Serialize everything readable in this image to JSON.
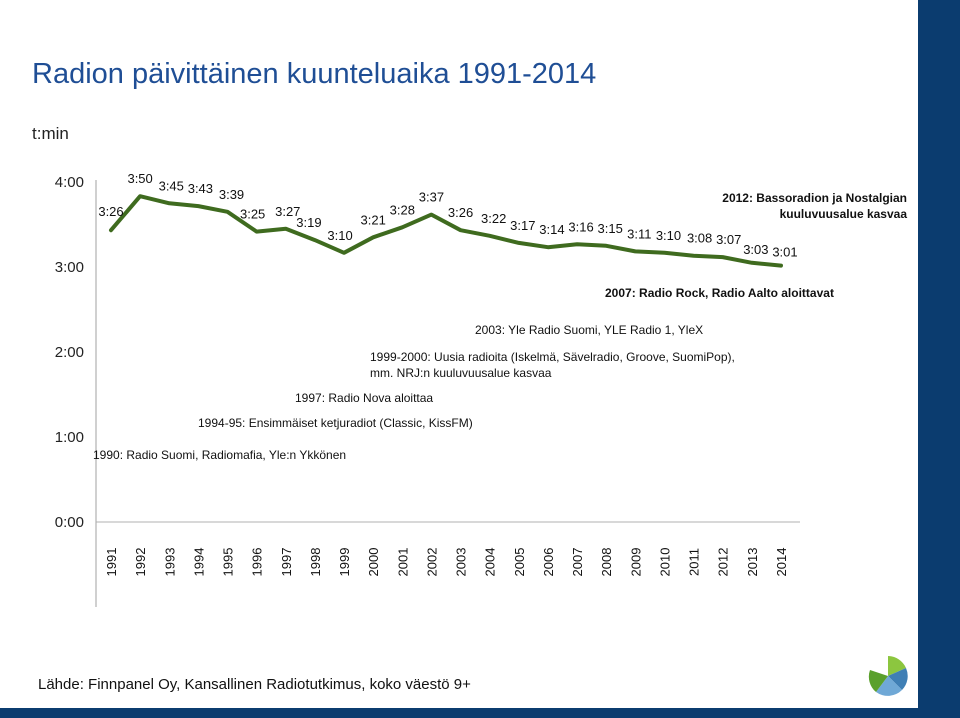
{
  "title": "Radion päivittäinen kuunteluaika 1991-2014",
  "unit_label": "t:min",
  "source": "Lähde: Finnpanel Oy, Kansallinen Radiotutkimus, koko väestö 9+",
  "colors": {
    "title": "#1f4e95",
    "line": "#3f6b1f",
    "frame": "#0b3c6f"
  },
  "chart_data": {
    "type": "line",
    "x": [
      "1991",
      "1992",
      "1993",
      "1994",
      "1995",
      "1996",
      "1997",
      "1998",
      "1999",
      "2000",
      "2001",
      "2002",
      "2003",
      "2004",
      "2005",
      "2006",
      "2007",
      "2008",
      "2009",
      "2010",
      "2011",
      "2012",
      "2013",
      "2014"
    ],
    "values_minutes": [
      206,
      230,
      225,
      223,
      219,
      205,
      207,
      199,
      190,
      201,
      208,
      217,
      206,
      202,
      197,
      194,
      196,
      195,
      191,
      190,
      188,
      187,
      183,
      181
    ],
    "data_labels": [
      "3:26",
      "3:50",
      "3:45",
      "3:43",
      "3:39",
      "3:25",
      "3:27",
      "3:19",
      "3:10",
      "3:21",
      "3:28",
      "3:37",
      "3:26",
      "3:22",
      "3:17",
      "3:14",
      "3:16",
      "3:15",
      "3:11",
      "3:10",
      "3:08",
      "3:07",
      "3:03",
      "3:01"
    ],
    "y_ticks": [
      "0:00",
      "1:00",
      "2:00",
      "3:00",
      "4:00"
    ],
    "y_tick_values": [
      0,
      60,
      120,
      180,
      240
    ],
    "ylim": [
      0,
      240
    ],
    "grid": false,
    "legend": "none",
    "annotations": [
      {
        "year": "1990",
        "text": "1990: Radio Suomi, Radiomafia, Yle:n Ykkönen",
        "bold": false
      },
      {
        "year": "1994-95",
        "text": "1994-95: Ensimmäiset ketjuradiot (Classic, KissFM)",
        "bold": false
      },
      {
        "year": "1997",
        "text": "1997: Radio Nova aloittaa",
        "bold": false
      },
      {
        "year": "1999-2000",
        "text": "1999-2000: Uusia radioita (Iskelmä, Sävelradio, Groove, SuomiPop),",
        "text2": "mm. NRJ:n kuuluvuusalue kasvaa",
        "bold": false
      },
      {
        "year": "2003",
        "text": "2003: Yle Radio Suomi, YLE Radio 1, YleX",
        "bold": false
      },
      {
        "year": "2007",
        "text": "2007: Radio Rock, Radio Aalto aloittavat",
        "bold": true
      },
      {
        "year": "2012",
        "text": "2012: Bassoradion ja Nostalgian",
        "text2": "kuuluvuusalue kasvaa",
        "bold": true
      }
    ]
  }
}
